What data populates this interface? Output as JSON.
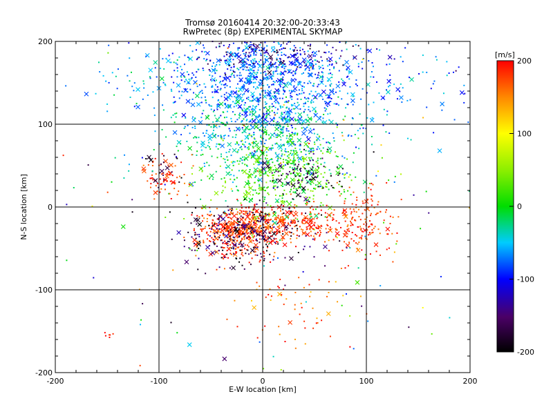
{
  "chart_data": {
    "type": "scatter",
    "title": "Tromsø 20160414 20:32:00-20:33:43",
    "subtitle": "RwPretec (8p) EXPERIMENTAL SKYMAP",
    "xlabel": "E-W location [km]",
    "ylabel": "N-S location [km]",
    "xlim": [
      -200,
      200
    ],
    "ylim": [
      -200,
      200
    ],
    "xticks": [
      -200,
      -100,
      0,
      100,
      200
    ],
    "yticks": [
      -200,
      -100,
      0,
      100,
      200
    ],
    "grid": true,
    "colorbar": {
      "label": "[m/s]",
      "min": -200,
      "max": 200,
      "ticks": [
        200,
        100,
        0,
        -100,
        -200
      ],
      "colormap": "rainbow (black-purple-blue-cyan-green-yellow-red)"
    },
    "marker_types": [
      "dot",
      "cross"
    ],
    "clusters": [
      {
        "cx": 0,
        "cy": 150,
        "sx": 40,
        "sy": 35,
        "n": 900,
        "vmin": -110,
        "vmax": -40
      },
      {
        "cx": 15,
        "cy": 185,
        "sx": 40,
        "sy": 12,
        "n": 150,
        "vmin": -190,
        "vmax": -100
      },
      {
        "cx": -90,
        "cy": 160,
        "sx": 60,
        "sy": 25,
        "n": 130,
        "vmin": -90,
        "vmax": -10
      },
      {
        "cx": 100,
        "cy": 150,
        "sx": 60,
        "sy": 30,
        "n": 160,
        "vmin": -110,
        "vmax": -30
      },
      {
        "cx": 0,
        "cy": 90,
        "sx": 45,
        "sy": 25,
        "n": 450,
        "vmin": -80,
        "vmax": 0
      },
      {
        "cx": 20,
        "cy": 40,
        "sx": 35,
        "sy": 28,
        "n": 520,
        "vmin": -30,
        "vmax": 60
      },
      {
        "cx": 40,
        "cy": 40,
        "sx": 20,
        "sy": 15,
        "n": 90,
        "vmin": -210,
        "vmax": -130
      },
      {
        "cx": -25,
        "cy": -30,
        "sx": 20,
        "sy": 15,
        "n": 420,
        "vmin": 150,
        "vmax": 210
      },
      {
        "cx": 30,
        "cy": -18,
        "sx": 25,
        "sy": 12,
        "n": 260,
        "vmin": 150,
        "vmax": 210
      },
      {
        "cx": 95,
        "cy": -20,
        "sx": 15,
        "sy": 25,
        "n": 150,
        "vmin": 150,
        "vmax": 210
      },
      {
        "cx": -20,
        "cy": -35,
        "sx": 30,
        "sy": 18,
        "n": 240,
        "vmin": -210,
        "vmax": -120
      },
      {
        "cx": -95,
        "cy": 35,
        "sx": 12,
        "sy": 12,
        "n": 70,
        "vmin": 150,
        "vmax": 210
      },
      {
        "cx": -95,
        "cy": 40,
        "sx": 12,
        "sy": 12,
        "n": 20,
        "vmin": -210,
        "vmax": -150
      },
      {
        "cx": 30,
        "cy": -120,
        "sx": 25,
        "sy": 25,
        "n": 60,
        "vmin": 120,
        "vmax": 210
      },
      {
        "cx": -150,
        "cy": -155,
        "sx": 4,
        "sy": 4,
        "n": 6,
        "vmin": 170,
        "vmax": 210
      },
      {
        "cx": 0,
        "cy": 0,
        "sx": 120,
        "sy": 120,
        "n": 180,
        "vmin": -200,
        "vmax": 200
      }
    ]
  }
}
